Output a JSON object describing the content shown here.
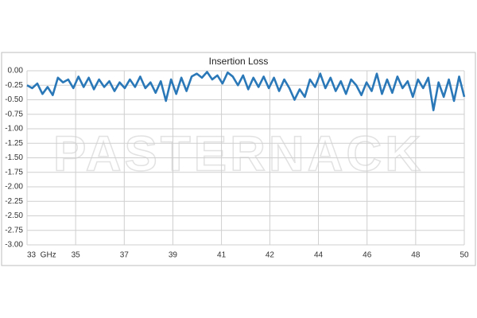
{
  "chart_data": {
    "type": "line",
    "title": "Insertion Loss",
    "watermark": "PASTERNACK",
    "x": [
      33.0,
      33.2,
      33.4,
      33.6,
      33.8,
      34.0,
      34.2,
      34.4,
      34.6,
      34.8,
      35.0,
      35.2,
      35.4,
      35.6,
      35.8,
      36.0,
      36.2,
      36.4,
      36.6,
      36.8,
      37.0,
      37.2,
      37.4,
      37.6,
      37.8,
      38.0,
      38.2,
      38.4,
      38.6,
      38.8,
      39.0,
      39.2,
      39.4,
      39.6,
      39.8,
      40.0,
      40.2,
      40.4,
      40.6,
      40.8,
      41.0,
      41.2,
      41.4,
      41.6,
      41.8,
      42.0,
      42.2,
      42.4,
      42.6,
      42.8,
      43.0,
      43.2,
      43.4,
      43.6,
      43.8,
      44.0,
      44.2,
      44.4,
      44.6,
      44.8,
      45.0,
      45.2,
      45.4,
      45.6,
      45.8,
      46.0,
      46.2,
      46.4,
      46.6,
      46.8,
      47.0,
      47.2,
      47.4,
      47.6,
      47.8,
      48.0,
      48.2,
      48.4,
      48.6,
      48.8,
      49.0,
      49.2,
      49.4,
      49.6,
      49.8,
      50.0
    ],
    "series": [
      {
        "color": "#2a78b8",
        "values": [
          -0.25,
          -0.3,
          -0.22,
          -0.4,
          -0.28,
          -0.42,
          -0.12,
          -0.2,
          -0.15,
          -0.3,
          -0.1,
          -0.28,
          -0.12,
          -0.32,
          -0.15,
          -0.28,
          -0.18,
          -0.35,
          -0.2,
          -0.3,
          -0.15,
          -0.28,
          -0.1,
          -0.3,
          -0.2,
          -0.38,
          -0.18,
          -0.52,
          -0.15,
          -0.4,
          -0.12,
          -0.35,
          -0.1,
          -0.05,
          -0.12,
          -0.02,
          -0.15,
          -0.08,
          -0.22,
          -0.03,
          -0.1,
          -0.25,
          -0.08,
          -0.32,
          -0.12,
          -0.28,
          -0.1,
          -0.3,
          -0.12,
          -0.35,
          -0.15,
          -0.3,
          -0.5,
          -0.32,
          -0.45,
          -0.15,
          -0.28,
          -0.05,
          -0.3,
          -0.12,
          -0.35,
          -0.18,
          -0.4,
          -0.15,
          -0.25,
          -0.42,
          -0.2,
          -0.35,
          -0.05,
          -0.4,
          -0.15,
          -0.38,
          -0.1,
          -0.3,
          -0.18,
          -0.45,
          -0.15,
          -0.3,
          -0.12,
          -0.68,
          -0.2,
          -0.45,
          -0.15,
          -0.52,
          -0.1,
          -0.45
        ]
      }
    ],
    "xlim": [
      33,
      50
    ],
    "xticks": [
      {
        "value": 33,
        "label": "33  GHz"
      },
      {
        "value": 34.89,
        "label": "35"
      },
      {
        "value": 36.78,
        "label": "37"
      },
      {
        "value": 38.67,
        "label": "39"
      },
      {
        "value": 40.56,
        "label": "41"
      },
      {
        "value": 42.44,
        "label": "42"
      },
      {
        "value": 44.33,
        "label": "44"
      },
      {
        "value": 46.22,
        "label": "46"
      },
      {
        "value": 48.11,
        "label": "48"
      },
      50
    ],
    "ylim": [
      -3,
      0
    ],
    "yticks": [
      {
        "value": 0,
        "label": "0.00"
      },
      {
        "value": -0.25,
        "label": "-0.25"
      },
      {
        "value": -0.5,
        "label": "-0.50"
      },
      {
        "value": -0.75,
        "label": "-0.75"
      },
      {
        "value": -1,
        "label": "-1.00"
      },
      {
        "value": -1.25,
        "label": "-1.25"
      },
      {
        "value": -1.5,
        "label": "-1.50"
      },
      {
        "value": -1.75,
        "label": "-1.75"
      },
      {
        "value": -2,
        "label": "-2.00"
      },
      {
        "value": -2.25,
        "label": "-2.25"
      },
      {
        "value": -2.5,
        "label": "-2.50"
      },
      {
        "value": -2.75,
        "label": "-2.75"
      },
      {
        "value": -3,
        "label": "-3.00"
      }
    ],
    "grid": true
  }
}
